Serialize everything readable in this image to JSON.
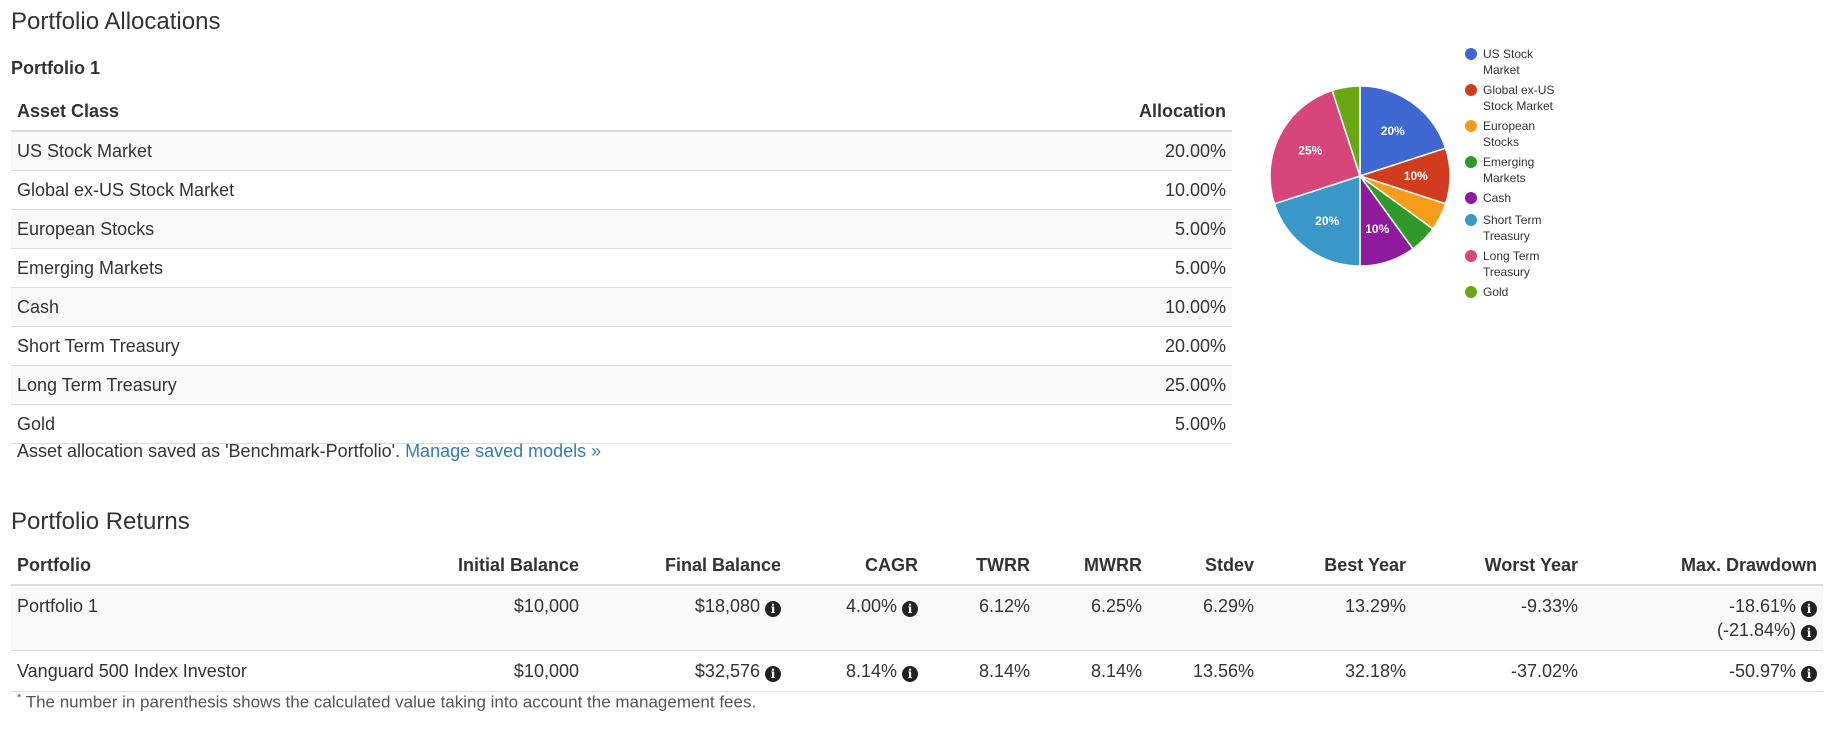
{
  "allocations": {
    "title": "Portfolio Allocations",
    "portfolio_name": "Portfolio 1",
    "headers": {
      "asset": "Asset Class",
      "allocation": "Allocation"
    },
    "rows": [
      {
        "asset": "US Stock Market",
        "allocation": "20.00%"
      },
      {
        "asset": "Global ex-US Stock Market",
        "allocation": "10.00%"
      },
      {
        "asset": "European Stocks",
        "allocation": "5.00%"
      },
      {
        "asset": "Emerging Markets",
        "allocation": "5.00%"
      },
      {
        "asset": "Cash",
        "allocation": "10.00%"
      },
      {
        "asset": "Short Term Treasury",
        "allocation": "20.00%"
      },
      {
        "asset": "Long Term Treasury",
        "allocation": "25.00%"
      },
      {
        "asset": "Gold",
        "allocation": "5.00%"
      }
    ],
    "saved_note": "Asset allocation saved as 'Benchmark-Portfolio'. ",
    "manage_link": "Manage saved models »"
  },
  "chart_data": {
    "type": "pie",
    "categories": [
      "US Stock Market",
      "Global ex-US Stock Market",
      "European Stocks",
      "Emerging Markets",
      "Cash",
      "Short Term Treasury",
      "Long Term Treasury",
      "Gold"
    ],
    "legend_labels": [
      [
        "US Stock",
        "Market"
      ],
      [
        "Global ex-US",
        "Stock Market"
      ],
      [
        "European",
        "Stocks"
      ],
      [
        "Emerging",
        "Markets"
      ],
      [
        "Cash"
      ],
      [
        "Short Term",
        "Treasury"
      ],
      [
        "Long Term",
        "Treasury"
      ],
      [
        "Gold"
      ]
    ],
    "values": [
      20,
      10,
      5,
      5,
      10,
      20,
      25,
      5
    ],
    "slice_labels": [
      "20%",
      "10%",
      "",
      "",
      "10%",
      "20%",
      "25%",
      ""
    ],
    "colors": [
      "#3f67d2",
      "#d13c1f",
      "#f59c1b",
      "#2f9a2b",
      "#8e1a9e",
      "#3a98c8",
      "#d6467a",
      "#6aa512"
    ],
    "legend_position": "right"
  },
  "returns": {
    "title": "Portfolio Returns",
    "headers": [
      "Portfolio",
      "Initial Balance",
      "Final Balance",
      "CAGR",
      "TWRR",
      "MWRR",
      "Stdev",
      "Best Year",
      "Worst Year",
      "Max. Drawdown"
    ],
    "rows": [
      {
        "portfolio": "Portfolio 1",
        "initial": "$10,000",
        "final": "$18,080",
        "cagr": "4.00%",
        "twrr": "6.12%",
        "mwrr": "6.25%",
        "stdev": "6.29%",
        "best": "13.29%",
        "worst": "-9.33%",
        "drawdown": "-18.61%",
        "drawdown_fee": "(-21.84%)"
      },
      {
        "portfolio": "Vanguard 500 Index Investor",
        "initial": "$10,000",
        "final": "$32,576",
        "cagr": "8.14%",
        "twrr": "8.14%",
        "mwrr": "8.14%",
        "stdev": "13.56%",
        "best": "32.18%",
        "worst": "-37.02%",
        "drawdown": "-50.97%"
      }
    ],
    "info_icon_glyph": "i",
    "footnote_mark": "*",
    "footnote": " The number in parenthesis shows the calculated value taking into account the management fees."
  }
}
